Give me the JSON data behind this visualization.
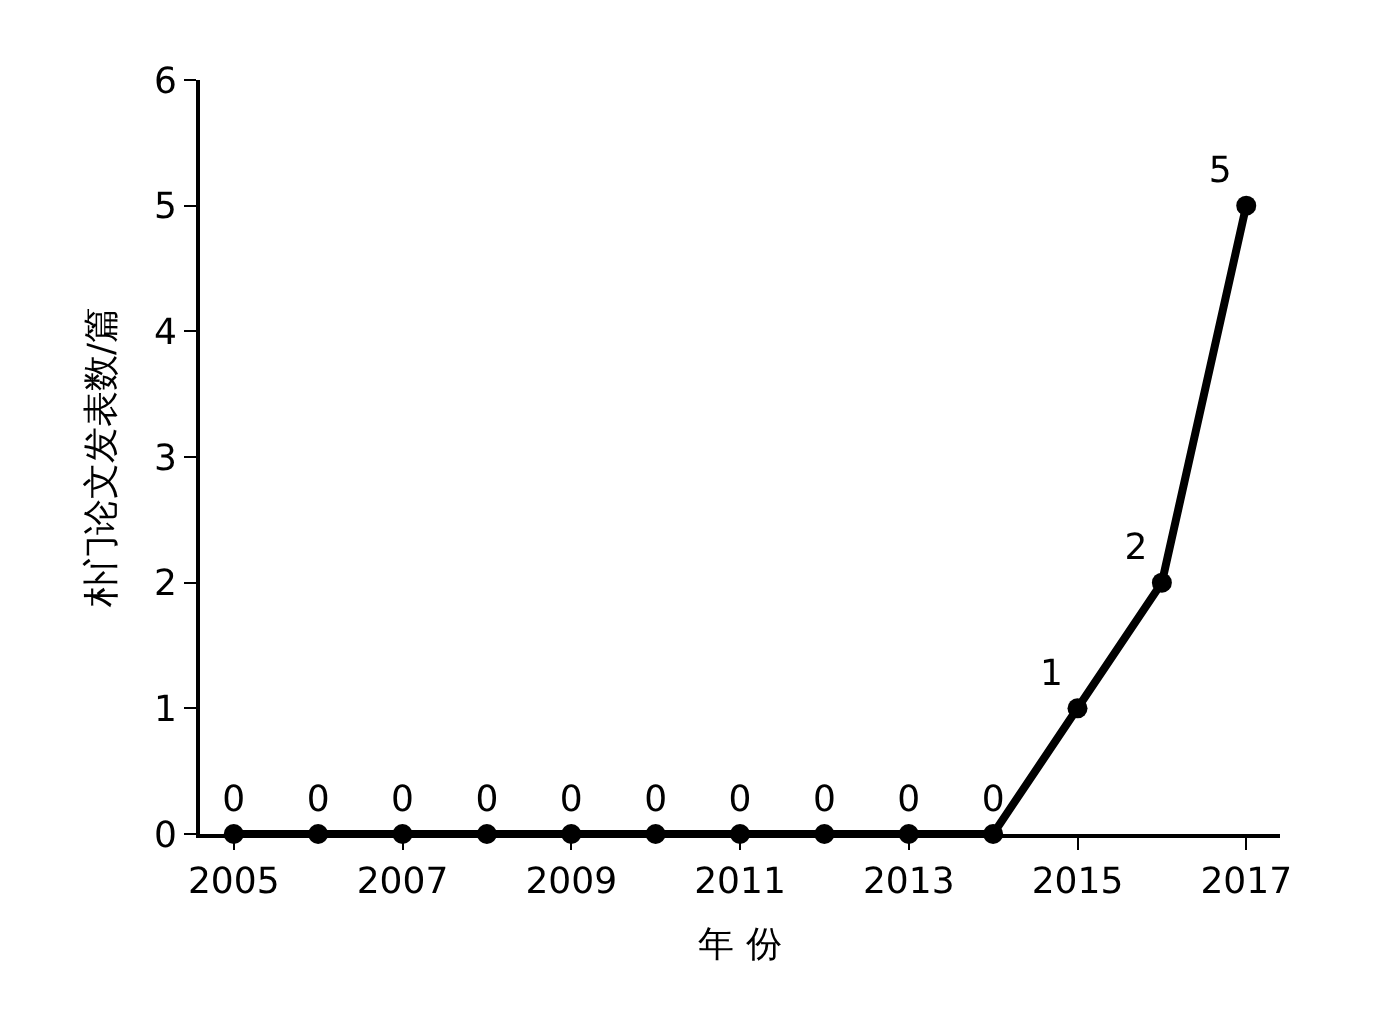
{
  "chart_data": {
    "type": "line",
    "xlabel": "年 份",
    "ylabel": "朴门论文发表数/篇",
    "x": [
      2005,
      2006,
      2007,
      2008,
      2009,
      2010,
      2011,
      2012,
      2013,
      2014,
      2015,
      2016,
      2017
    ],
    "series": [
      {
        "color": "#000000",
        "values": [
          0,
          0,
          0,
          0,
          0,
          0,
          0,
          0,
          0,
          0,
          1,
          2,
          5
        ]
      }
    ],
    "xlim": [
      2004.6,
      2017.4
    ],
    "xticks": [
      2005,
      2007,
      2009,
      2011,
      2013,
      2015,
      2017
    ],
    "ylim": [
      0,
      6
    ],
    "yticks": [
      0,
      1,
      2,
      3,
      4,
      5,
      6
    ],
    "data_labels": true,
    "marker": "circle",
    "line_style": "solid"
  }
}
